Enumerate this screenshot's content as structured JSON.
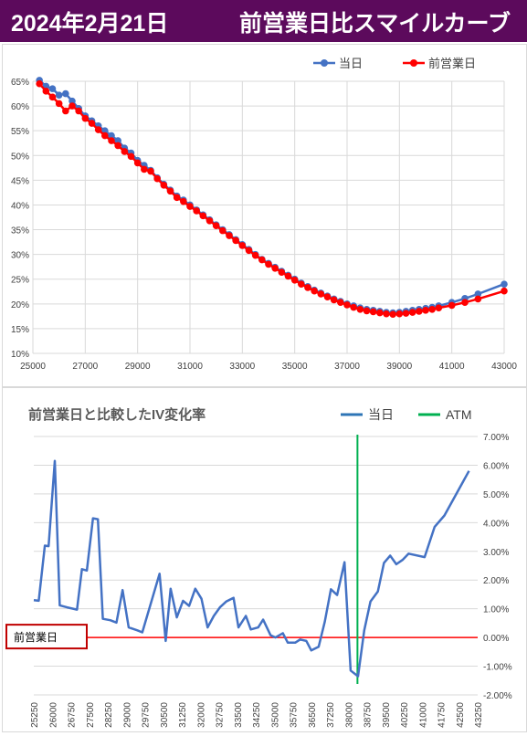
{
  "header": {
    "date": "2024年2月21日",
    "title": "前営業日比スマイルカーブ"
  },
  "chart_data": [
    {
      "type": "line",
      "title": "",
      "legend_position": "top-right",
      "grid": true,
      "xlim": [
        25000,
        43000
      ],
      "ylim": [
        10,
        65
      ],
      "x_ticks": [
        "25000",
        "27000",
        "29000",
        "31000",
        "33000",
        "35000",
        "37000",
        "39000",
        "41000",
        "43000"
      ],
      "y_ticks": [
        "10%",
        "15%",
        "20%",
        "25%",
        "30%",
        "35%",
        "40%",
        "45%",
        "50%",
        "55%",
        "60%",
        "65%"
      ],
      "series": [
        {
          "name": "当日",
          "color": "#4472c4",
          "points": [
            [
              25250,
              65.2
            ],
            [
              25500,
              64.0
            ],
            [
              25750,
              63.5
            ],
            [
              26000,
              62.2
            ],
            [
              26250,
              62.5
            ],
            [
              26500,
              61.0
            ],
            [
              26750,
              59.5
            ],
            [
              27000,
              58.0
            ],
            [
              27250,
              57.0
            ],
            [
              27500,
              56.0
            ],
            [
              27750,
              55.0
            ],
            [
              28000,
              54.0
            ],
            [
              28250,
              53.0
            ],
            [
              28500,
              51.5
            ],
            [
              28750,
              50.5
            ],
            [
              29000,
              49.0
            ],
            [
              29250,
              48.0
            ],
            [
              29500,
              47.0
            ],
            [
              29750,
              45.5
            ],
            [
              30000,
              44.2
            ],
            [
              30250,
              43.0
            ],
            [
              30500,
              41.8
            ],
            [
              30750,
              41.0
            ],
            [
              31000,
              40.0
            ],
            [
              31250,
              39.0
            ],
            [
              31500,
              38.0
            ],
            [
              31750,
              37.0
            ],
            [
              32000,
              36.0
            ],
            [
              32250,
              35.0
            ],
            [
              32500,
              34.0
            ],
            [
              32750,
              33.0
            ],
            [
              33000,
              32.0
            ],
            [
              33250,
              31.0
            ],
            [
              33500,
              30.0
            ],
            [
              33750,
              29.0
            ],
            [
              34000,
              28.2
            ],
            [
              34250,
              27.4
            ],
            [
              34500,
              26.6
            ],
            [
              34750,
              25.8
            ],
            [
              35000,
              25.0
            ],
            [
              35250,
              24.2
            ],
            [
              35500,
              23.5
            ],
            [
              35750,
              22.8
            ],
            [
              36000,
              22.2
            ],
            [
              36250,
              21.6
            ],
            [
              36500,
              21.0
            ],
            [
              36750,
              20.5
            ],
            [
              37000,
              20.0
            ],
            [
              37250,
              19.6
            ],
            [
              37500,
              19.2
            ],
            [
              37750,
              18.9
            ],
            [
              38000,
              18.7
            ],
            [
              38250,
              18.5
            ],
            [
              38500,
              18.3
            ],
            [
              38750,
              18.2
            ],
            [
              39000,
              18.3
            ],
            [
              39250,
              18.5
            ],
            [
              39500,
              18.7
            ],
            [
              39750,
              18.9
            ],
            [
              40000,
              19.1
            ],
            [
              40250,
              19.3
            ],
            [
              40500,
              19.6
            ],
            [
              41000,
              20.3
            ],
            [
              41500,
              21.1
            ],
            [
              42000,
              22.0
            ],
            [
              43000,
              24.0
            ]
          ]
        },
        {
          "name": "前営業日",
          "color": "#ff0000",
          "points": [
            [
              25250,
              64.5
            ],
            [
              25500,
              63.0
            ],
            [
              25750,
              61.8
            ],
            [
              26000,
              60.5
            ],
            [
              26250,
              59.0
            ],
            [
              26500,
              60.0
            ],
            [
              26750,
              59.0
            ],
            [
              27000,
              57.5
            ],
            [
              27250,
              56.5
            ],
            [
              27500,
              55.2
            ],
            [
              27750,
              54.0
            ],
            [
              28000,
              53.0
            ],
            [
              28250,
              52.0
            ],
            [
              28500,
              50.8
            ],
            [
              28750,
              49.8
            ],
            [
              29000,
              48.5
            ],
            [
              29250,
              47.2
            ],
            [
              29500,
              46.8
            ],
            [
              29750,
              45.3
            ],
            [
              30000,
              44.0
            ],
            [
              30250,
              42.8
            ],
            [
              30500,
              41.5
            ],
            [
              30750,
              40.7
            ],
            [
              31000,
              39.7
            ],
            [
              31250,
              38.8
            ],
            [
              31500,
              37.8
            ],
            [
              31750,
              36.8
            ],
            [
              32000,
              35.8
            ],
            [
              32250,
              34.8
            ],
            [
              32500,
              33.8
            ],
            [
              32750,
              32.8
            ],
            [
              33000,
              31.8
            ],
            [
              33250,
              30.8
            ],
            [
              33500,
              29.8
            ],
            [
              33750,
              28.9
            ],
            [
              34000,
              28.0
            ],
            [
              34250,
              27.2
            ],
            [
              34500,
              26.4
            ],
            [
              34750,
              25.6
            ],
            [
              35000,
              24.8
            ],
            [
              35250,
              24.0
            ],
            [
              35500,
              23.3
            ],
            [
              35750,
              22.6
            ],
            [
              36000,
              22.0
            ],
            [
              36250,
              21.4
            ],
            [
              36500,
              20.8
            ],
            [
              36750,
              20.3
            ],
            [
              37000,
              19.8
            ],
            [
              37250,
              19.3
            ],
            [
              37500,
              18.9
            ],
            [
              37750,
              18.6
            ],
            [
              38000,
              18.4
            ],
            [
              38250,
              18.2
            ],
            [
              38500,
              18.0
            ],
            [
              38750,
              17.9
            ],
            [
              39000,
              18.0
            ],
            [
              39250,
              18.1
            ],
            [
              39500,
              18.3
            ],
            [
              39750,
              18.5
            ],
            [
              40000,
              18.7
            ],
            [
              40250,
              18.9
            ],
            [
              40500,
              19.2
            ],
            [
              41000,
              19.7
            ],
            [
              41500,
              20.3
            ],
            [
              42000,
              21.0
            ],
            [
              43000,
              22.6
            ]
          ]
        }
      ]
    },
    {
      "type": "line",
      "title": "前営業日と比較したIV変化率",
      "legend_position": "top-right",
      "grid": true,
      "ylim": [
        -2.0,
        7.0
      ],
      "y_ticks": [
        "7.00%",
        "6.00%",
        "5.00%",
        "4.00%",
        "3.00%",
        "2.00%",
        "1.00%",
        "0.00%",
        "-1.00%",
        "-2.00%"
      ],
      "x_ticks": [
        "25250",
        "25625",
        "26000",
        "26375",
        "26750",
        "27125",
        "27500",
        "27875",
        "28250",
        "28625",
        "29000",
        "29375",
        "29750",
        "30125",
        "30500",
        "30875",
        "31250",
        "31625",
        "32000",
        "32375",
        "32750",
        "33125",
        "33500",
        "33875",
        "34250",
        "34625",
        "35000",
        "35375",
        "35750",
        "36125",
        "36500",
        "36875",
        "37250",
        "37625",
        "38000",
        "38375",
        "38750",
        "39125",
        "39500",
        "39875",
        "40250",
        "40625",
        "41000",
        "41375",
        "41750",
        "42125",
        "42500",
        "42875",
        "43250"
      ],
      "x_label_step": 2,
      "atm_x": 38375,
      "atm_color": "#00b050",
      "baseline_label": "前営業日",
      "baseline_color": "#ff0000",
      "legend": [
        {
          "name": "当日",
          "color": "#2e75b6"
        },
        {
          "name": "ATM",
          "color": "#00b050"
        }
      ],
      "series": [
        {
          "name": "当日",
          "color": "#4472c4",
          "points": [
            [
              25250,
              1.3
            ],
            [
              25450,
              1.28
            ],
            [
              25700,
              3.2
            ],
            [
              25850,
              3.18
            ],
            [
              26100,
              6.15
            ],
            [
              26300,
              1.12
            ],
            [
              26600,
              1.05
            ],
            [
              27000,
              0.97
            ],
            [
              27200,
              2.38
            ],
            [
              27400,
              2.33
            ],
            [
              27650,
              4.15
            ],
            [
              27850,
              4.12
            ],
            [
              28050,
              0.65
            ],
            [
              28350,
              0.6
            ],
            [
              28600,
              0.52
            ],
            [
              28850,
              1.65
            ],
            [
              29100,
              0.35
            ],
            [
              29450,
              0.25
            ],
            [
              29650,
              0.18
            ],
            [
              30350,
              2.22
            ],
            [
              30600,
              -0.12
            ],
            [
              30800,
              1.7
            ],
            [
              31050,
              0.7
            ],
            [
              31300,
              1.28
            ],
            [
              31550,
              1.1
            ],
            [
              31800,
              1.7
            ],
            [
              32050,
              1.35
            ],
            [
              32300,
              0.35
            ],
            [
              32550,
              0.75
            ],
            [
              32800,
              1.05
            ],
            [
              33050,
              1.25
            ],
            [
              33350,
              1.38
            ],
            [
              33550,
              0.35
            ],
            [
              33850,
              0.75
            ],
            [
              34050,
              0.28
            ],
            [
              34350,
              0.35
            ],
            [
              34550,
              0.62
            ],
            [
              34850,
              0.08
            ],
            [
              35050,
              0.0
            ],
            [
              35350,
              0.15
            ],
            [
              35550,
              -0.18
            ],
            [
              35850,
              -0.18
            ],
            [
              36050,
              -0.07
            ],
            [
              36300,
              -0.12
            ],
            [
              36500,
              -0.45
            ],
            [
              36800,
              -0.32
            ],
            [
              37050,
              0.55
            ],
            [
              37300,
              1.68
            ],
            [
              37550,
              1.48
            ],
            [
              37850,
              2.62
            ],
            [
              38100,
              -1.15
            ],
            [
              38400,
              -1.35
            ],
            [
              38650,
              0.25
            ],
            [
              38900,
              1.25
            ],
            [
              39200,
              1.6
            ],
            [
              39450,
              2.6
            ],
            [
              39700,
              2.85
            ],
            [
              39950,
              2.55
            ],
            [
              40200,
              2.7
            ],
            [
              40450,
              2.92
            ],
            [
              41100,
              2.8
            ],
            [
              41500,
              3.85
            ],
            [
              41900,
              4.25
            ],
            [
              42900,
              5.8
            ]
          ]
        }
      ]
    }
  ]
}
